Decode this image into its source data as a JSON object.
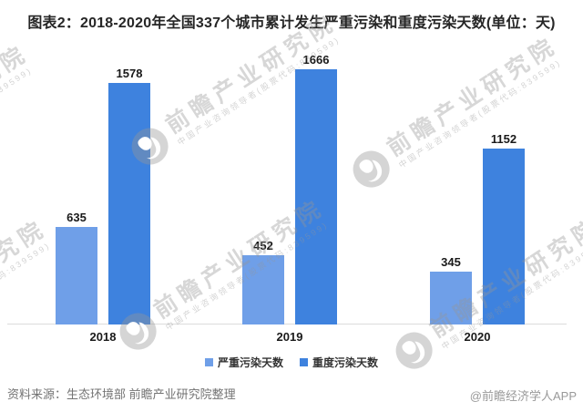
{
  "title": "图表2：2018-2020年全国337个城市累计发生严重污染和重度污染天数(单位：天)",
  "chart_data": {
    "type": "bar",
    "title": "2018-2020年全国337个城市累计发生严重污染和重度污染天数",
    "unit": "天",
    "categories": [
      "2018",
      "2019",
      "2020"
    ],
    "series": [
      {
        "name": "严重污染天数",
        "color": "#6F9FE8",
        "values": [
          635,
          452,
          345
        ]
      },
      {
        "name": "重度污染天数",
        "color": "#3E82DE",
        "values": [
          1578,
          1666,
          1152
        ]
      }
    ],
    "xlabel": "",
    "ylabel": "",
    "ylim": [
      0,
      1800
    ],
    "grid": false,
    "legend_position": "bottom",
    "value_labels": true
  },
  "watermark": {
    "text": "前瞻产业研究院",
    "subtext": "中国产业咨询领导者(股票代码:839599)",
    "logo_icon": "qianzhan-logo-icon"
  },
  "footer": {
    "source": "资料来源：生态环境部 前瞻产业研究院整理",
    "credit": "@前瞻经济学人APP"
  }
}
